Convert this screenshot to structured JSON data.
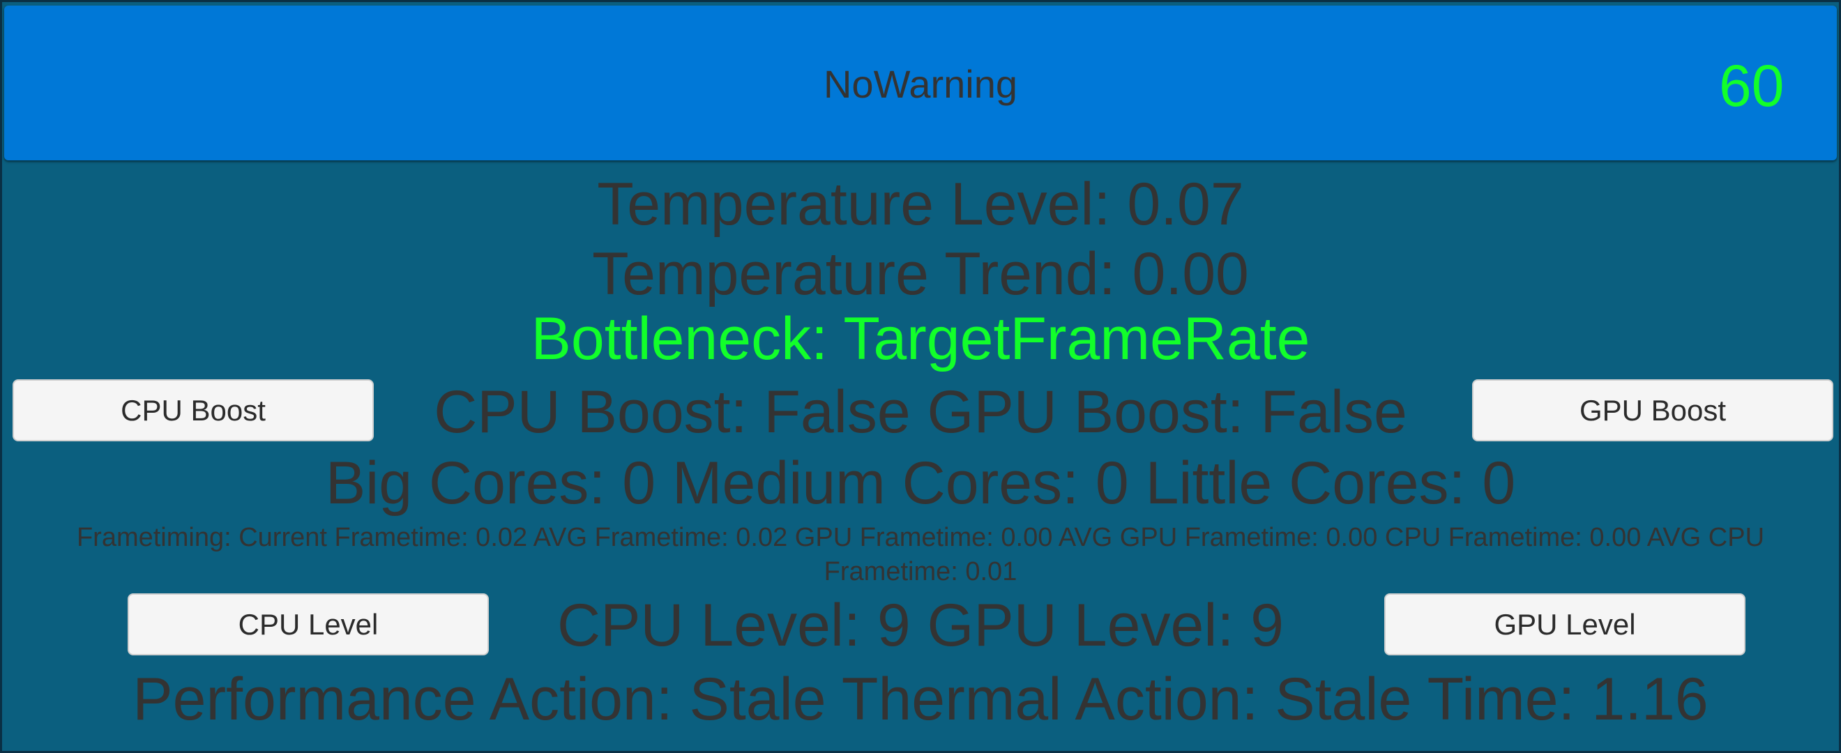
{
  "header": {
    "warning": "NoWarning",
    "fps": "60"
  },
  "lines": {
    "temperature_level": "Temperature Level: 0.07",
    "temperature_trend": "Temperature Trend: 0.00",
    "bottleneck": "Bottleneck: TargetFrameRate",
    "boost": "CPU Boost: False GPU Boost: False",
    "cores": "Big Cores: 0 Medium Cores: 0 Little Cores: 0",
    "frametiming": "Frametiming: Current Frametime: 0.02 AVG Frametime: 0.02 GPU Frametime: 0.00 AVG GPU Frametime: 0.00 CPU Frametime: 0.00 AVG CPU Frametime: 0.01",
    "levels": "CPU Level: 9 GPU Level: 9",
    "actions": "Performance Action: Stale Thermal Action: Stale Time: 1.16"
  },
  "buttons": {
    "cpu_boost": "CPU Boost",
    "gpu_boost": "GPU Boost",
    "cpu_level": "CPU Level",
    "gpu_level": "GPU Level"
  }
}
